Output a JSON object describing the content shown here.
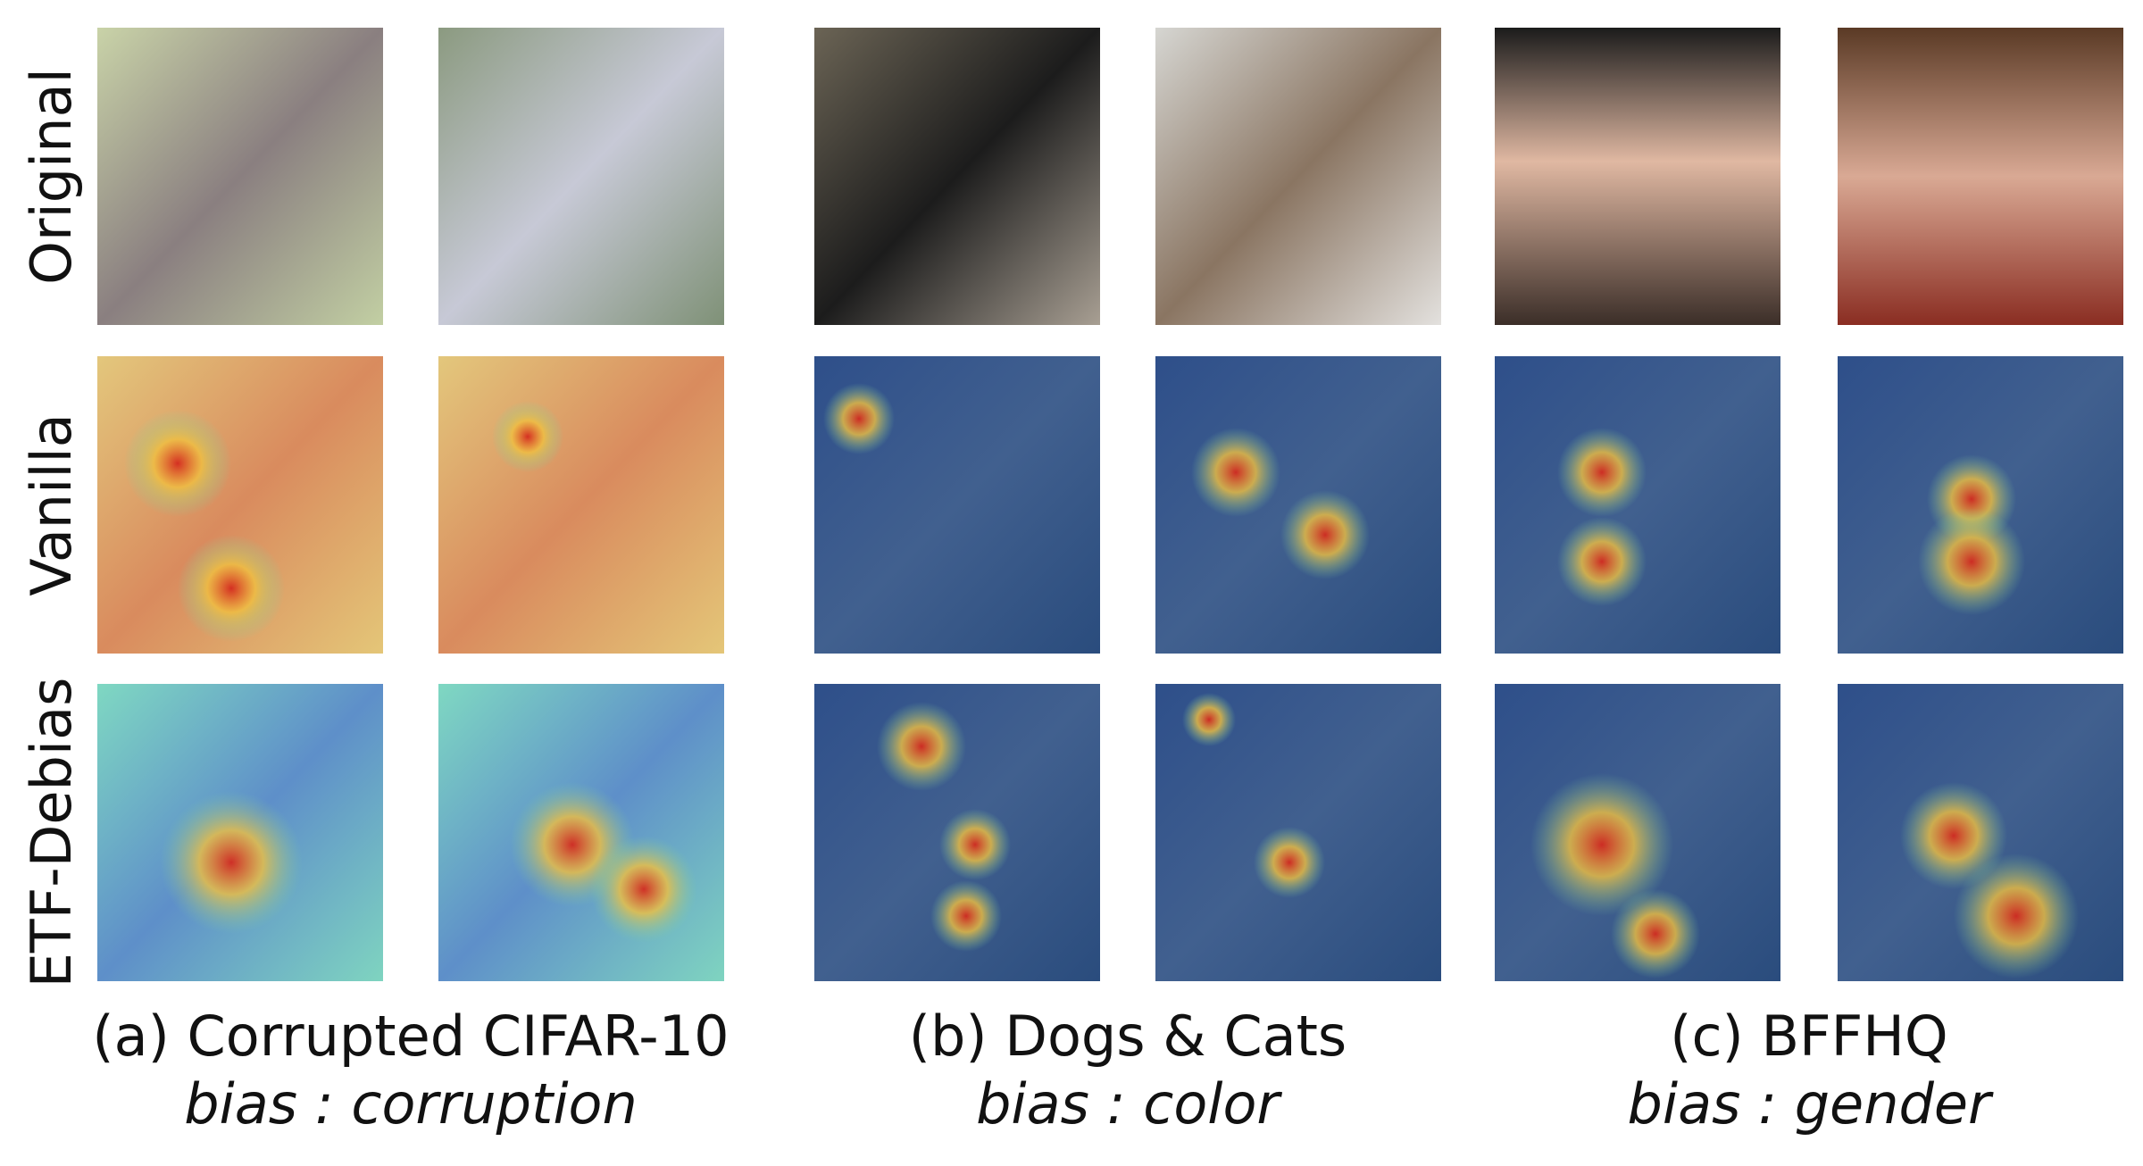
{
  "row_labels": [
    "Original",
    "Vanilla",
    "ETF-Debias"
  ],
  "groups": [
    {
      "caption": "(a) Corrupted CIFAR-10",
      "bias": "bias : corruption"
    },
    {
      "caption": "(b) Dogs & Cats",
      "bias": "bias : color"
    },
    {
      "caption": "(c) BFFHQ",
      "bias": "bias : gender"
    }
  ]
}
